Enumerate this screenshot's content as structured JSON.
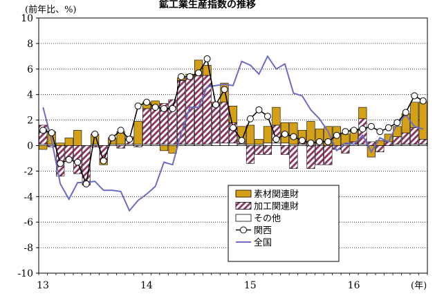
{
  "chart_data": {
    "type": "bar",
    "title": "鉱工業生産指数の推移",
    "ylabel": "(前年比、%)",
    "xlabel": "(年)",
    "ylim": [
      -10,
      10
    ],
    "yticks": [
      10,
      8,
      6,
      4,
      2,
      0,
      -2,
      -4,
      -6,
      -8,
      -10
    ],
    "xticks": [
      {
        "label": "13",
        "index": 0
      },
      {
        "label": "14",
        "index": 12
      },
      {
        "label": "15",
        "index": 24
      },
      {
        "label": "16",
        "index": 36
      }
    ],
    "grid": "horizontal-dotted",
    "legend": {
      "position": "lower-right",
      "items": [
        "素材関連財",
        "加工関連財",
        "その他",
        "関西",
        "全国"
      ]
    },
    "colors": {
      "materials": "#D4A017",
      "processing_stripe": "#8B3A62",
      "other": "#ffffff",
      "kansai": "#000000",
      "national": "#6C6CC4"
    },
    "series": [
      {
        "name": "素材関連財",
        "kind": "stacked-bar",
        "values": [
          -0.3,
          1.0,
          0.2,
          0.6,
          1.2,
          -0.1,
          0.8,
          -0.4,
          0.5,
          1.0,
          0.0,
          1.8,
          0.5,
          0.4,
          -0.4,
          -0.6,
          0.2,
          0.2,
          1.2,
          0.8,
          0.2,
          1.5,
          1.3,
          1.2,
          1.5,
          0.4,
          1.3,
          1.4,
          1.6,
          1.7,
          1.0,
          1.8,
          1.2,
          1.5,
          1.5,
          0.8,
          1.0,
          0.9,
          -0.9,
          0.4,
          0.6,
          0.8,
          1.5,
          2.0,
          2.9
        ]
      },
      {
        "name": "加工関連財",
        "kind": "stacked-bar",
        "values": [
          1.5,
          -0.1,
          -2.4,
          -1.1,
          -2.2,
          -3.0,
          -0.1,
          -1.1,
          0.0,
          -0.2,
          0.6,
          -0.1,
          2.8,
          3.0,
          3.2,
          3.5,
          5.0,
          5.3,
          5.4,
          5.4,
          3.0,
          3.2,
          1.6,
          0.2,
          -1.4,
          -0.7,
          -0.7,
          1.4,
          -0.7,
          -1.8,
          0.1,
          -1.8,
          -1.5,
          -1.5,
          -0.3,
          -0.6,
          0.2,
          2.0,
          0.3,
          -0.5,
          0.3,
          0.6,
          0.9,
          1.3,
          0.4
        ]
      },
      {
        "name": "その他",
        "kind": "stacked-bar",
        "values": [
          0.1,
          0.1,
          0.0,
          0.0,
          0.0,
          0.0,
          0.1,
          0.0,
          0.1,
          0.1,
          0.1,
          0.1,
          0.1,
          0.1,
          0.1,
          0.1,
          0.1,
          0.1,
          0.1,
          0.1,
          0.2,
          0.2,
          0.2,
          0.1,
          0.1,
          0.1,
          0.2,
          0.2,
          0.2,
          0.1,
          0.1,
          0.1,
          0.1,
          0.0,
          0.0,
          0.1,
          0.1,
          0.1,
          0.0,
          0.0,
          0.0,
          0.1,
          0.1,
          0.1,
          0.1
        ]
      },
      {
        "name": "関西",
        "kind": "line-marker",
        "values": [
          1.2,
          1.0,
          -1.4,
          -1.1,
          -1.3,
          -3.0,
          0.9,
          -1.2,
          0.6,
          1.2,
          0.5,
          3.1,
          3.4,
          3.0,
          2.9,
          2.9,
          5.4,
          5.4,
          5.7,
          6.8,
          3.2,
          4.4,
          1.4,
          0.4,
          2.1,
          2.8,
          2.3,
          0.5,
          0.9,
          0.7,
          0.4,
          0.2,
          0.3,
          0.3,
          0.8,
          1.1,
          1.2,
          1.3,
          1.5,
          1.1,
          1.4,
          1.8,
          2.6,
          3.9,
          3.5
        ]
      },
      {
        "name": "全国",
        "kind": "line",
        "values": [
          3.0,
          0.4,
          -3.0,
          -4.2,
          -2.9,
          -2.9,
          -2.8,
          -3.5,
          -3.5,
          -3.6,
          -5.1,
          -4.3,
          -3.8,
          -3.2,
          -1.3,
          -1.5,
          1.0,
          3.0,
          3.0,
          4.6,
          4.7,
          4.8,
          4.7,
          6.6,
          6.3,
          5.6,
          7.0,
          6.0,
          6.4,
          4.1,
          3.9,
          2.8,
          2.1,
          1.1,
          -0.4,
          0.2,
          0.1,
          0.8,
          -0.5,
          0.6,
          0.3,
          1.7,
          2.4,
          1.5,
          1.3
        ]
      }
    ]
  }
}
